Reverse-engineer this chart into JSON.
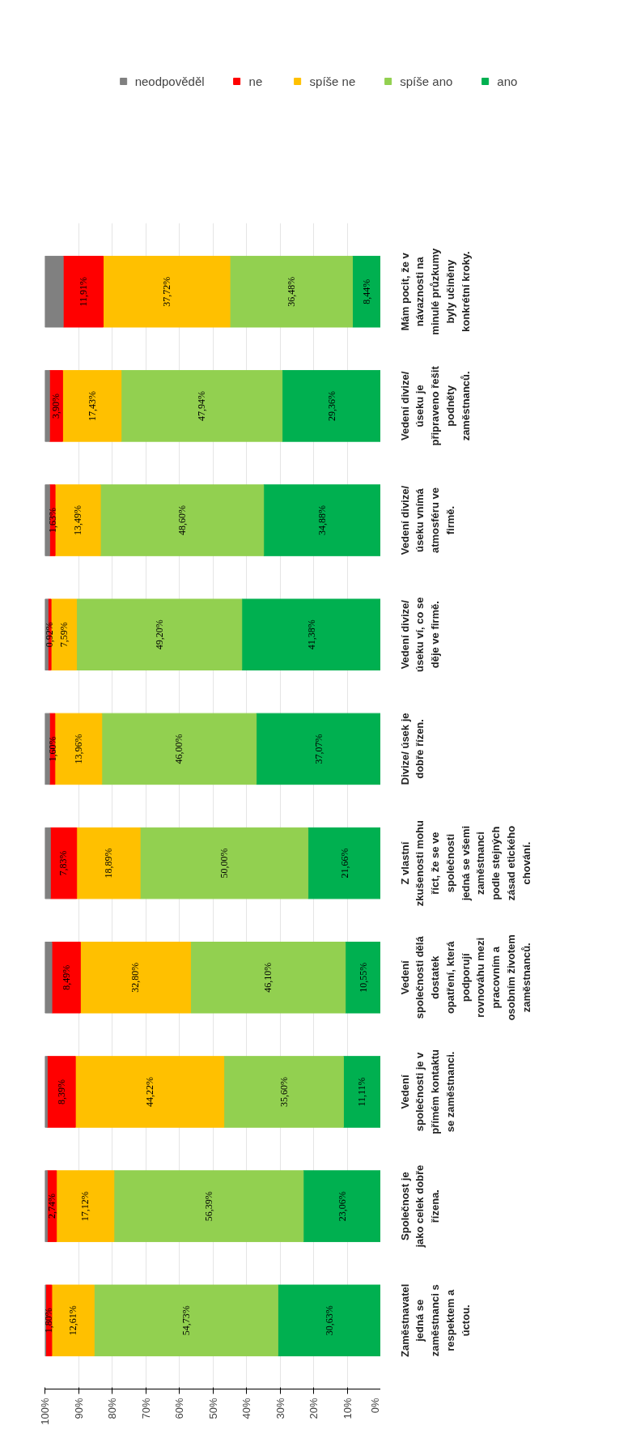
{
  "chart_data": {
    "type": "bar",
    "orientation": "horizontal",
    "stacked": true,
    "categories": [
      "Mám pocit, že v návaznosti na minulé průzkumy byly učiněny konkrétní kroky.",
      "Vedení divize/ úseku je připraveno řešit podněty zaměstnanců.",
      "Vedení divize/ úseku vnímá atmosféru ve firmě.",
      "Vedení divize/ úseku ví, co se děje ve firmě.",
      "Divize/ úsek je dobře řízen.",
      "Z vlastní zkušenosti mohu říct, že se ve společnosti jedná se všemi zaměstnanci podle stejných zásad etického chování.",
      "Vedení společnosti dělá dostatek opatření, která podporují rovnováhu mezi pracovním a osobním životem zaměstnanců.",
      "Vedení společnosti je v přímém kontaktu se zaměstnanci.",
      "Společnost je jako celek dobře řízena.",
      "Zaměstnavatel jedná se zaměstnanci s respektem a úctou."
    ],
    "series": [
      {
        "name": "ano",
        "color": "#00b050",
        "values": [
          8.44,
          29.36,
          34.88,
          41.38,
          37.07,
          21.66,
          10.55,
          11.11,
          23.06,
          30.63
        ],
        "value_labels": [
          "8,44%",
          "29,36%",
          "34,88%",
          "41,38%",
          "37,07%",
          "21,66%",
          "10,55%",
          "11,11%",
          "23,06%",
          "30,63%"
        ]
      },
      {
        "name": "spíše ano",
        "color": "#92d050",
        "values": [
          36.48,
          47.94,
          48.6,
          49.2,
          46.0,
          50.0,
          46.1,
          35.6,
          56.39,
          54.73
        ],
        "value_labels": [
          "36,48%",
          "47,94%",
          "48,60%",
          "49,20%",
          "46,00%",
          "50,00%",
          "46,10%",
          "35,60%",
          "56,39%",
          "54,73%"
        ]
      },
      {
        "name": "spíše ne",
        "color": "#ffc000",
        "values": [
          37.72,
          17.43,
          13.49,
          7.59,
          13.96,
          18.89,
          32.8,
          44.22,
          17.12,
          12.61
        ],
        "value_labels": [
          "37,72%",
          "17,43%",
          "13,49%",
          "7,59%",
          "13,96%",
          "18,89%",
          "32,80%",
          "44,22%",
          "17,12%",
          "12,61%"
        ]
      },
      {
        "name": "ne",
        "color": "#ff0000",
        "values": [
          11.91,
          3.9,
          1.63,
          0.92,
          1.6,
          7.83,
          8.49,
          8.39,
          2.74,
          1.8
        ],
        "value_labels": [
          "11,91%",
          "3,90%",
          "1,63%",
          "0,92%",
          "1,60%",
          "7,83%",
          "8,49%",
          "8,39%",
          "2,74%",
          "1,80%"
        ]
      },
      {
        "name": "neodpověděl",
        "color": "#808080",
        "values": [
          5.5,
          1.4,
          1.4,
          0.9,
          1.4,
          1.6,
          2.1,
          0.7,
          0.7,
          0.2
        ]
      }
    ],
    "xlim": [
      100,
      0
    ],
    "xticks": [
      {
        "value": 0,
        "label": "0%"
      },
      {
        "value": 10,
        "label": "10%"
      },
      {
        "value": 20,
        "label": "20%"
      },
      {
        "value": 30,
        "label": "30%"
      },
      {
        "value": 40,
        "label": "40%"
      },
      {
        "value": 50,
        "label": "50%"
      },
      {
        "value": 60,
        "label": "60%"
      },
      {
        "value": 70,
        "label": "70%"
      },
      {
        "value": 80,
        "label": "80%"
      },
      {
        "value": 90,
        "label": "90%"
      },
      {
        "value": 100,
        "label": "100%"
      }
    ],
    "grid": "x",
    "legend": "top"
  }
}
